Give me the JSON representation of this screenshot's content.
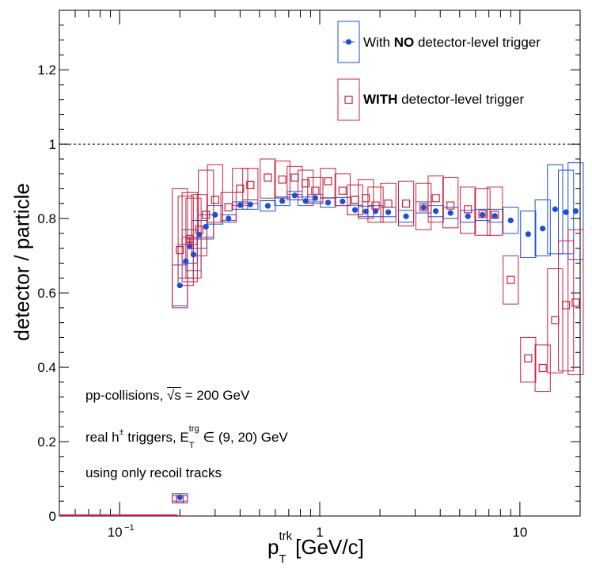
{
  "chart_data": {
    "type": "scatter",
    "xlabel_main": "p",
    "xlabel_sub": "T",
    "xlabel_sup": "trk",
    "xlabel_unit": "[GeV/c]",
    "ylabel": "detector / particle",
    "xscale": "log",
    "xlim": [
      0.05,
      20
    ],
    "ylim": [
      0,
      1.36
    ],
    "xtick_labels": [
      "10",
      "1",
      "10"
    ],
    "xtick_sup": "−1",
    "ytick_labels": [
      "0",
      "0.2",
      "0.4",
      "0.6",
      "0.8",
      "1",
      "1.2"
    ],
    "reference_line": 1,
    "legend": [
      {
        "bold": "NO",
        "pre": "With ",
        "post": " detector-level trigger",
        "color": "#1a4fd6"
      },
      {
        "bold": "WITH",
        "pre": "",
        "post": " detector-level trigger",
        "color": "#c8203f"
      }
    ],
    "annotations": {
      "line1_pre": "pp-collisions, ",
      "line1_sqrt": "√s",
      "line1_post": " = 200 GeV",
      "line2_pre": "real h",
      "line2_sup_h": "±",
      "line2_mid": " triggers, E",
      "line2_sup": "trg",
      "line2_sub": "T",
      "line2_post": " ∈ (9, 20) GeV",
      "line3": "using only recoil tracks"
    },
    "series": [
      {
        "name": "With NO detector-level trigger",
        "color": "#1a4fd6",
        "marker": "filled-circle",
        "x": [
          0.2,
          0.2,
          0.214,
          0.224,
          0.234,
          0.25,
          0.27,
          0.3,
          0.35,
          0.4,
          0.45,
          0.55,
          0.65,
          0.75,
          0.85,
          0.95,
          1.1,
          1.3,
          1.5,
          1.7,
          1.9,
          2.2,
          2.7,
          3.3,
          3.8,
          4.5,
          5.5,
          6.5,
          7.5,
          9.0,
          11.0,
          13.0,
          15.0,
          17.0,
          19.0
        ],
        "y": [
          0.05,
          0.62,
          0.685,
          0.725,
          0.703,
          0.757,
          0.778,
          0.81,
          0.8,
          0.836,
          0.838,
          0.834,
          0.847,
          0.862,
          0.847,
          0.855,
          0.843,
          0.846,
          0.823,
          0.819,
          0.82,
          0.817,
          0.806,
          0.83,
          0.82,
          0.815,
          0.806,
          0.81,
          0.807,
          0.795,
          0.758,
          0.773,
          0.825,
          0.817,
          0.82
        ],
        "box_low": [
          0.04,
          0.565,
          0.64,
          0.68,
          0.66,
          0.72,
          0.745,
          0.785,
          0.79,
          0.825,
          0.825,
          0.82,
          0.835,
          0.85,
          0.835,
          0.845,
          0.83,
          0.835,
          0.81,
          0.805,
          0.805,
          0.805,
          0.79,
          0.815,
          0.805,
          0.8,
          0.79,
          0.795,
          0.79,
          0.76,
          0.695,
          0.7,
          0.705,
          0.705,
          0.69
        ],
        "box_high": [
          0.06,
          0.675,
          0.73,
          0.77,
          0.745,
          0.795,
          0.81,
          0.835,
          0.81,
          0.845,
          0.85,
          0.848,
          0.858,
          0.873,
          0.858,
          0.865,
          0.856,
          0.857,
          0.836,
          0.833,
          0.835,
          0.83,
          0.822,
          0.845,
          0.835,
          0.83,
          0.822,
          0.825,
          0.825,
          0.83,
          0.82,
          0.85,
          0.945,
          0.93,
          0.95
        ]
      },
      {
        "name": "WITH detector-level trigger",
        "color": "#c8203f",
        "marker": "open-square",
        "x": [
          0.2,
          0.2,
          0.214,
          0.224,
          0.234,
          0.25,
          0.27,
          0.3,
          0.35,
          0.4,
          0.45,
          0.55,
          0.65,
          0.75,
          0.85,
          0.95,
          1.1,
          1.3,
          1.5,
          1.7,
          1.9,
          2.2,
          2.7,
          3.3,
          3.8,
          4.5,
          5.5,
          6.5,
          7.5,
          9.0,
          11.0,
          13.0,
          15.0,
          17.0,
          19.0
        ],
        "y": [
          0.045,
          0.715,
          0.74,
          0.745,
          0.74,
          0.77,
          0.81,
          0.85,
          0.83,
          0.88,
          0.89,
          0.91,
          0.905,
          0.91,
          0.895,
          0.875,
          0.9,
          0.875,
          0.85,
          0.855,
          0.835,
          0.84,
          0.84,
          0.83,
          0.855,
          0.835,
          0.825,
          0.812,
          0.81,
          0.635,
          0.424,
          0.398,
          0.527,
          0.567,
          0.574
        ],
        "box_low": [
          0.035,
          0.56,
          0.62,
          0.63,
          0.64,
          0.7,
          0.75,
          0.79,
          0.795,
          0.835,
          0.84,
          0.855,
          0.855,
          0.865,
          0.85,
          0.84,
          0.855,
          0.835,
          0.81,
          0.8,
          0.79,
          0.79,
          0.78,
          0.77,
          0.79,
          0.775,
          0.76,
          0.755,
          0.755,
          0.57,
          0.36,
          0.335,
          0.385,
          0.39,
          0.38
        ],
        "box_high": [
          0.055,
          0.88,
          0.86,
          0.87,
          0.855,
          0.865,
          0.93,
          0.945,
          0.87,
          0.935,
          0.935,
          0.96,
          0.955,
          0.94,
          0.93,
          0.91,
          0.935,
          0.92,
          0.89,
          0.905,
          0.885,
          0.895,
          0.9,
          0.895,
          0.915,
          0.91,
          0.885,
          0.88,
          0.885,
          0.7,
          0.48,
          0.46,
          0.665,
          0.74,
          0.77
        ]
      }
    ]
  }
}
